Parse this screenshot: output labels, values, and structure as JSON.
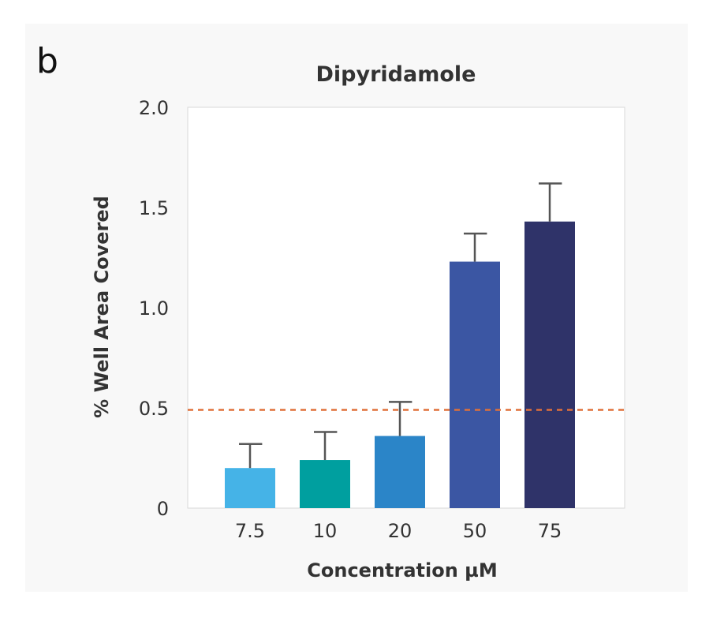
{
  "panel_label": "b",
  "chart_data": {
    "type": "bar",
    "title": "Dipyridamole",
    "xlabel": "Concentration µM",
    "ylabel": "% Well Area Covered",
    "categories": [
      "7.5",
      "10",
      "20",
      "50",
      "75"
    ],
    "values": [
      0.2,
      0.24,
      0.36,
      1.23,
      1.43
    ],
    "error_upper": [
      0.32,
      0.38,
      0.53,
      1.37,
      1.62
    ],
    "colors": [
      "#45b3e7",
      "#009f9f",
      "#2b85c8",
      "#3b56a3",
      "#2f3369"
    ],
    "ylim": [
      0,
      2.0
    ],
    "yticks": [
      "0",
      "0.5",
      "1.0",
      "1.5",
      "2.0"
    ],
    "ytick_values": [
      0,
      0.5,
      1.0,
      1.5,
      2.0
    ],
    "threshold": 0.49,
    "threshold_color": "#e0703a",
    "error_bar_color": "#555555",
    "grid": false,
    "legend": "none"
  }
}
